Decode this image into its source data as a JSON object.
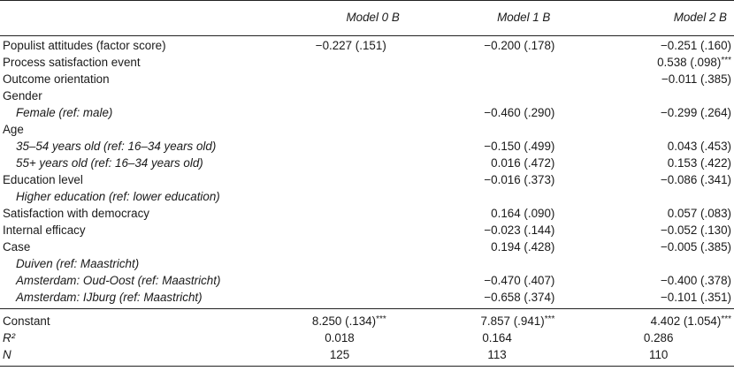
{
  "table": {
    "headers": [
      "",
      "Model 0 B",
      "Model 1 B",
      "Model 2 B"
    ],
    "rows": [
      {
        "label": "Populist attitudes (factor score)",
        "sub": false,
        "m0": "−0.227 (.151)",
        "m1": "−0.200 (.178)",
        "m2": "−0.251 (.160)"
      },
      {
        "label": "Process satisfaction event",
        "sub": false,
        "m0": "",
        "m1": "",
        "m2": "0.538 (.098)***"
      },
      {
        "label": "Outcome orientation",
        "sub": false,
        "m0": "",
        "m1": "",
        "m2": "−0.011 (.385)"
      },
      {
        "label": "Gender",
        "sub": false,
        "m0": "",
        "m1": "",
        "m2": ""
      },
      {
        "label": "Female (ref: male)",
        "sub": true,
        "m0": "",
        "m1": "−0.460 (.290)",
        "m2": "−0.299 (.264)"
      },
      {
        "label": "Age",
        "sub": false,
        "m0": "",
        "m1": "",
        "m2": ""
      },
      {
        "label": "35–54 years old (ref: 16–34 years old)",
        "sub": true,
        "m0": "",
        "m1": "−0.150 (.499)",
        "m2": "0.043 (.453)"
      },
      {
        "label": "55+ years old (ref: 16–34 years old)",
        "sub": true,
        "m0": "",
        "m1": "0.016 (.472)",
        "m2": "0.153 (.422)"
      },
      {
        "label": "Education level",
        "sub": false,
        "m0": "",
        "m1": "−0.016 (.373)",
        "m2": "−0.086 (.341)"
      },
      {
        "label": "Higher education (ref: lower education)",
        "sub": true,
        "m0": "",
        "m1": "",
        "m2": ""
      },
      {
        "label": "Satisfaction with democracy",
        "sub": false,
        "m0": "",
        "m1": "0.164 (.090)",
        "m2": "0.057 (.083)"
      },
      {
        "label": "Internal efficacy",
        "sub": false,
        "m0": "",
        "m1": "−0.023 (.144)",
        "m2": "−0.052 (.130)"
      },
      {
        "label": "Case",
        "sub": false,
        "m0": "",
        "m1": "0.194 (.428)",
        "m2": "−0.005 (.385)"
      },
      {
        "label": "Duiven (ref: Maastricht)",
        "sub": true,
        "m0": "",
        "m1": "",
        "m2": ""
      },
      {
        "label": "Amsterdam: Oud-Oost (ref: Maastricht)",
        "sub": true,
        "m0": "",
        "m1": "−0.470 (.407)",
        "m2": "−0.400 (.378)"
      },
      {
        "label": "Amsterdam: IJburg (ref: Maastricht)",
        "sub": true,
        "m0": "",
        "m1": "−0.658 (.374)",
        "m2": "−0.101 (.351)"
      }
    ],
    "footer": [
      {
        "label": "Constant",
        "m0": "8.250 (.134)***",
        "m1": "7.857 (.941)***",
        "m2": "4.402 (1.054)***"
      },
      {
        "label": "R²",
        "m0": "0.018",
        "m1": "0.164",
        "m2": "0.286"
      },
      {
        "label": "N",
        "m0": "125",
        "m1": "113",
        "m2": "110"
      }
    ]
  }
}
